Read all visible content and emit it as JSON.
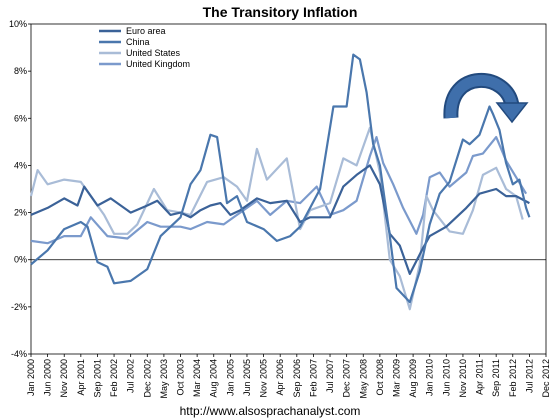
{
  "chart_data": {
    "type": "line",
    "title": "The Transitory Inflation",
    "xlabel": "",
    "ylabel": "",
    "ylim": [
      -4,
      10
    ],
    "yticks": [
      "-4%",
      "-2%",
      "0%",
      "2%",
      "4%",
      "6%",
      "8%",
      "10%"
    ],
    "ytick_values": [
      -4,
      -2,
      0,
      2,
      4,
      6,
      8,
      10
    ],
    "x_tick_labels": [
      "Jan 2000",
      "Jun 2000",
      "Nov 2000",
      "Apr 2001",
      "Sep 2001",
      "Feb 2002",
      "Jul 2002",
      "Dec 2002",
      "May 2003",
      "Oct 2003",
      "Mar 2004",
      "Aug 2004",
      "Jan 2005",
      "Jun 2005",
      "Nov 2005",
      "Apr 2006",
      "Sep 2006",
      "Feb 2007",
      "Jul 2007",
      "Dec 2007",
      "May 2008",
      "Oct 2008",
      "Mar 2009",
      "Aug 2009",
      "Jan 2010",
      "Jun 2010",
      "Nov 2010",
      "Apr 2011",
      "Sep 2011",
      "Feb 2012",
      "Jul 2012",
      "Dec 2012"
    ],
    "x_range": [
      "Jan 2000",
      "Dec 2012"
    ],
    "grid": false,
    "legend_position": "top-left",
    "series": [
      {
        "name": "Euro area",
        "color": "#3b6298",
        "points": [
          [
            "Jan 2000",
            1.9
          ],
          [
            "Jun 2000",
            2.2
          ],
          [
            "Nov 2000",
            2.6
          ],
          [
            "Mar 2001",
            2.3
          ],
          [
            "May 2001",
            3.1
          ],
          [
            "Sep 2001",
            2.3
          ],
          [
            "Jan 2002",
            2.6
          ],
          [
            "Jul 2002",
            2.0
          ],
          [
            "Dec 2002",
            2.3
          ],
          [
            "Mar 2003",
            2.5
          ],
          [
            "Jul 2003",
            1.9
          ],
          [
            "Oct 2003",
            2.0
          ],
          [
            "Jan 2004",
            1.8
          ],
          [
            "Apr 2004",
            2.1
          ],
          [
            "Jul 2004",
            2.3
          ],
          [
            "Oct 2004",
            2.4
          ],
          [
            "Jan 2005",
            1.9
          ],
          [
            "Apr 2005",
            2.1
          ],
          [
            "Sep 2005",
            2.6
          ],
          [
            "Jan 2006",
            2.4
          ],
          [
            "Jun 2006",
            2.5
          ],
          [
            "Oct 2006",
            1.6
          ],
          [
            "Jan 2007",
            1.8
          ],
          [
            "Jul 2007",
            1.8
          ],
          [
            "Nov 2007",
            3.1
          ],
          [
            "Mar 2008",
            3.6
          ],
          [
            "Jul 2008",
            4.0
          ],
          [
            "Oct 2008",
            3.2
          ],
          [
            "Jan 2009",
            1.1
          ],
          [
            "Apr 2009",
            0.6
          ],
          [
            "Jul 2009",
            -0.6
          ],
          [
            "Nov 2009",
            0.5
          ],
          [
            "Jan 2010",
            1.0
          ],
          [
            "Jun 2010",
            1.4
          ],
          [
            "Dec 2010",
            2.2
          ],
          [
            "Apr 2011",
            2.8
          ],
          [
            "Sep 2011",
            3.0
          ],
          [
            "Dec 2011",
            2.7
          ],
          [
            "Mar 2012",
            2.7
          ],
          [
            "Jul 2012",
            2.4
          ]
        ]
      },
      {
        "name": "China",
        "color": "#4a77ad",
        "points": [
          [
            "Jan 2000",
            -0.2
          ],
          [
            "Jun 2000",
            0.4
          ],
          [
            "Nov 2000",
            1.3
          ],
          [
            "Apr 2001",
            1.6
          ],
          [
            "Jun 2001",
            1.4
          ],
          [
            "Sep 2001",
            -0.1
          ],
          [
            "Dec 2001",
            -0.3
          ],
          [
            "Feb 2002",
            -1.0
          ],
          [
            "Jul 2002",
            -0.9
          ],
          [
            "Dec 2002",
            -0.4
          ],
          [
            "Apr 2003",
            1.0
          ],
          [
            "Oct 2003",
            1.8
          ],
          [
            "Jan 2004",
            3.2
          ],
          [
            "Apr 2004",
            3.8
          ],
          [
            "Jul 2004",
            5.3
          ],
          [
            "Sep 2004",
            5.2
          ],
          [
            "Dec 2004",
            2.4
          ],
          [
            "Mar 2005",
            2.7
          ],
          [
            "Jun 2005",
            1.6
          ],
          [
            "Nov 2005",
            1.3
          ],
          [
            "Mar 2006",
            0.8
          ],
          [
            "Jul 2006",
            1.0
          ],
          [
            "Oct 2006",
            1.4
          ],
          [
            "Jan 2007",
            2.2
          ],
          [
            "Apr 2007",
            3.0
          ],
          [
            "Jul 2007",
            5.6
          ],
          [
            "Aug 2007",
            6.5
          ],
          [
            "Oct 2007",
            6.5
          ],
          [
            "Dec 2007",
            6.5
          ],
          [
            "Feb 2008",
            8.7
          ],
          [
            "Apr 2008",
            8.5
          ],
          [
            "Jun 2008",
            7.1
          ],
          [
            "Aug 2008",
            4.9
          ],
          [
            "Oct 2008",
            4.0
          ],
          [
            "Jan 2009",
            1.0
          ],
          [
            "Mar 2009",
            -1.2
          ],
          [
            "Jul 2009",
            -1.8
          ],
          [
            "Oct 2009",
            -0.5
          ],
          [
            "Jan 2010",
            1.5
          ],
          [
            "Apr 2010",
            2.8
          ],
          [
            "Jul 2010",
            3.3
          ],
          [
            "Nov 2010",
            5.1
          ],
          [
            "Jan 2011",
            4.9
          ],
          [
            "Apr 2011",
            5.3
          ],
          [
            "Jul 2011",
            6.5
          ],
          [
            "Aug 2011",
            6.2
          ],
          [
            "Oct 2011",
            5.5
          ],
          [
            "Dec 2011",
            4.1
          ],
          [
            "Feb 2012",
            3.2
          ],
          [
            "Apr 2012",
            3.4
          ],
          [
            "Jun 2012",
            2.2
          ],
          [
            "Jul 2012",
            1.8
          ]
        ]
      },
      {
        "name": "United States",
        "color": "#a9bcd7",
        "points": [
          [
            "Jan 2000",
            2.7
          ],
          [
            "Mar 2000",
            3.8
          ],
          [
            "Jun 2000",
            3.2
          ],
          [
            "Nov 2000",
            3.4
          ],
          [
            "Apr 2001",
            3.3
          ],
          [
            "Jul 2001",
            2.7
          ],
          [
            "Nov 2001",
            1.9
          ],
          [
            "Feb 2002",
            1.1
          ],
          [
            "Jun 2002",
            1.1
          ],
          [
            "Sep 2002",
            1.5
          ],
          [
            "Dec 2002",
            2.4
          ],
          [
            "Feb 2003",
            3.0
          ],
          [
            "Jun 2003",
            2.1
          ],
          [
            "Oct 2003",
            2.0
          ],
          [
            "Jan 2004",
            1.9
          ],
          [
            "Jun 2004",
            3.3
          ],
          [
            "Nov 2004",
            3.5
          ],
          [
            "Mar 2005",
            3.1
          ],
          [
            "Jun 2005",
            2.5
          ],
          [
            "Sep 2005",
            4.7
          ],
          [
            "Dec 2005",
            3.4
          ],
          [
            "Jun 2006",
            4.3
          ],
          [
            "Oct 2006",
            1.3
          ],
          [
            "Jan 2007",
            2.1
          ],
          [
            "Jul 2007",
            2.4
          ],
          [
            "Nov 2007",
            4.3
          ],
          [
            "Mar 2008",
            4.0
          ],
          [
            "Jul 2008",
            5.6
          ],
          [
            "Oct 2008",
            3.7
          ],
          [
            "Jan 2009",
            0.0
          ],
          [
            "Apr 2009",
            -0.7
          ],
          [
            "Jul 2009",
            -2.1
          ],
          [
            "Oct 2009",
            -0.2
          ],
          [
            "Dec 2009",
            2.7
          ],
          [
            "Feb 2010",
            2.1
          ],
          [
            "Jul 2010",
            1.2
          ],
          [
            "Nov 2010",
            1.1
          ],
          [
            "Feb 2011",
            2.1
          ],
          [
            "May 2011",
            3.6
          ],
          [
            "Sep 2011",
            3.9
          ],
          [
            "Dec 2011",
            3.0
          ],
          [
            "Mar 2012",
            2.7
          ],
          [
            "May 2012",
            1.7
          ]
        ]
      },
      {
        "name": "United Kingdom",
        "color": "#7b9acc",
        "points": [
          [
            "Jan 2000",
            0.8
          ],
          [
            "Jun 2000",
            0.7
          ],
          [
            "Nov 2000",
            1.0
          ],
          [
            "Apr 2001",
            1.0
          ],
          [
            "Jul 2001",
            1.8
          ],
          [
            "Dec 2001",
            1.0
          ],
          [
            "Jun 2002",
            0.9
          ],
          [
            "Dec 2002",
            1.6
          ],
          [
            "Apr 2003",
            1.4
          ],
          [
            "Oct 2003",
            1.4
          ],
          [
            "Jan 2004",
            1.3
          ],
          [
            "Jun 2004",
            1.6
          ],
          [
            "Nov 2004",
            1.5
          ],
          [
            "Mar 2005",
            1.9
          ],
          [
            "Sep 2005",
            2.5
          ],
          [
            "Jan 2006",
            1.9
          ],
          [
            "Jun 2006",
            2.5
          ],
          [
            "Oct 2006",
            2.4
          ],
          [
            "Mar 2007",
            3.1
          ],
          [
            "Jul 2007",
            1.9
          ],
          [
            "Nov 2007",
            2.1
          ],
          [
            "Mar 2008",
            2.5
          ],
          [
            "Jul 2008",
            4.4
          ],
          [
            "Sep 2008",
            5.2
          ],
          [
            "Nov 2008",
            4.1
          ],
          [
            "Feb 2009",
            3.2
          ],
          [
            "May 2009",
            2.2
          ],
          [
            "Sep 2009",
            1.1
          ],
          [
            "Nov 2009",
            1.9
          ],
          [
            "Jan 2010",
            3.5
          ],
          [
            "Apr 2010",
            3.7
          ],
          [
            "Jul 2010",
            3.1
          ],
          [
            "Dec 2010",
            3.7
          ],
          [
            "Feb 2011",
            4.4
          ],
          [
            "May 2011",
            4.5
          ],
          [
            "Sep 2011",
            5.2
          ],
          [
            "Dec 2011",
            4.2
          ],
          [
            "Mar 2012",
            3.5
          ],
          [
            "Jun 2012",
            2.8
          ]
        ]
      }
    ]
  },
  "footer_text": "http://www.alsosprachanalyst.com"
}
